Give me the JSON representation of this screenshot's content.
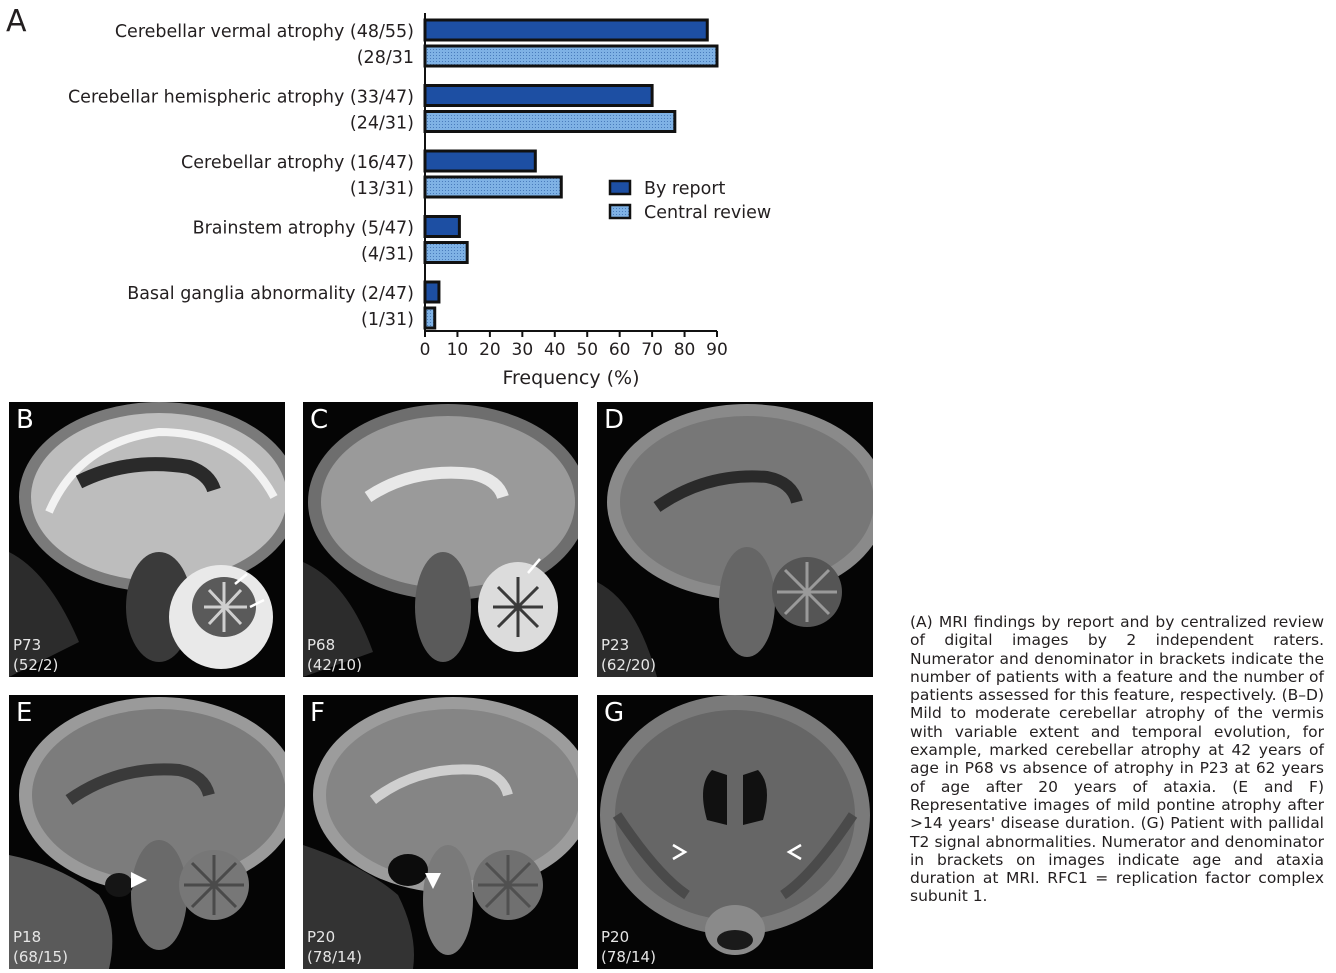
{
  "figure": {
    "panel_a_letter": "A",
    "caption": "(A) MRI findings by report and by centralized review of digital images by 2 independent raters. Numerator and denominator in brackets indicate the number of patients with a feature and the number of patients assessed for this feature, respectively. (B–D) Mild to moderate cerebellar atrophy of the vermis with variable extent and temporal evolution, for example, marked cerebellar atrophy at 42 years of age in P68 vs absence of atrophy in P23 at 62 years of age after 20 years of ataxia. (E and F) Representative images of mild pontine atrophy after >14 years' disease duration. (G) Patient with pallidal T2 signal abnormalities. Numerator and denominator in brackets on images indicate age and ataxia duration at MRI. RFC1 = replication factor complex subunit 1."
  },
  "chart_data": {
    "type": "bar",
    "orientation": "horizontal",
    "categories": [
      "Cerebellar vermal atrophy (48/55)",
      "Cerebellar hemispheric atrophy (33/47)",
      "Cerebellar atrophy (16/47)",
      "Brainstem atrophy (5/47)",
      "Basal ganglia abnormality (2/47)"
    ],
    "secondary_labels": [
      "(28/31",
      "(24/31)",
      "(13/31)",
      "(4/31)",
      "(1/31)"
    ],
    "series": [
      {
        "name": "By report",
        "values": [
          87,
          70,
          34,
          10.6,
          4.3
        ],
        "color": "#1d4fa3"
      },
      {
        "name": "Central review",
        "values": [
          90,
          77,
          42,
          13,
          3
        ],
        "color": "#7fb2e5"
      }
    ],
    "xlabel": "Frequency (%)",
    "xlim": [
      0,
      90
    ],
    "xticks": [
      0,
      10,
      20,
      30,
      40,
      50,
      60,
      70,
      80,
      90
    ],
    "legend_position": "right"
  },
  "mri_panels": [
    {
      "letter": "B",
      "patient": "P73",
      "age_duration": "(52/2)",
      "view": "sagittal"
    },
    {
      "letter": "C",
      "patient": "P68",
      "age_duration": "(42/10)",
      "view": "sagittal"
    },
    {
      "letter": "D",
      "patient": "P23",
      "age_duration": "(62/20)",
      "view": "sagittal"
    },
    {
      "letter": "E",
      "patient": "P18",
      "age_duration": "(68/15)",
      "view": "sagittal"
    },
    {
      "letter": "F",
      "patient": "P20",
      "age_duration": "(78/14)",
      "view": "sagittal"
    },
    {
      "letter": "G",
      "patient": "P20",
      "age_duration": "(78/14)",
      "view": "coronal"
    }
  ]
}
